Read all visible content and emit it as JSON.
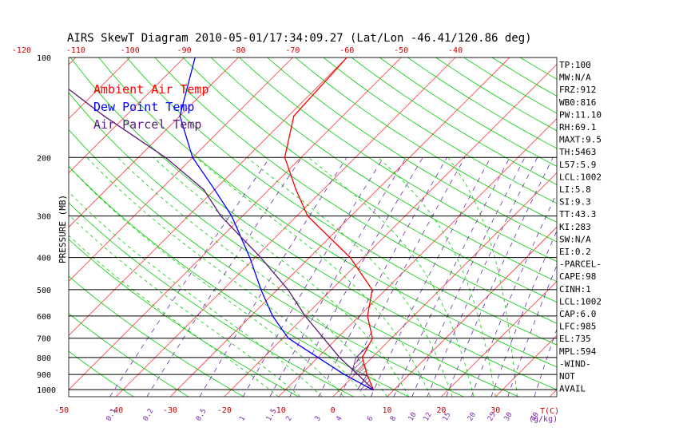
{
  "chart_data": {
    "type": "line",
    "title": "AIRS SkewT Diagram 2010-05-01/17:34:09.27 (Lat/Lon -46.41/120.86 deg)",
    "ylabel": "PRESSURE (MB)",
    "xlabel": "T(C)",
    "mixing_ratio_unit": "(g/kg)",
    "ylim": [
      1050,
      100
    ],
    "xlim": [
      -50,
      40
    ],
    "pressure_ticks": [
      100,
      200,
      300,
      400,
      500,
      600,
      700,
      800,
      900,
      1000
    ],
    "temp_ticks_bottom": [
      -50,
      -40,
      -30,
      -20,
      -10,
      0,
      10,
      20,
      30
    ],
    "temp_ticks_top": [
      -120,
      -110,
      -100,
      -90,
      -80,
      -70,
      -60,
      -50,
      -40
    ],
    "mixing_ratio_labels": [
      "0.1",
      "0.2",
      "0.5",
      "1",
      "1.5",
      "2",
      "3",
      "4",
      "6",
      "8",
      "10",
      "12",
      "15",
      "20",
      "25",
      "30",
      "40"
    ],
    "legend": [
      {
        "name": "Ambient Air Temp",
        "color": "#ff0000"
      },
      {
        "name": "Dew Point Temp",
        "color": "#0000ff"
      },
      {
        "name": "Air Parcel Temp",
        "color": "#5a1a78"
      }
    ],
    "series": [
      {
        "name": "Ambient Air Temp",
        "color": "#ff0000",
        "points": [
          [
            1000,
            6.2
          ],
          [
            900,
            2.2
          ],
          [
            800,
            -1.8
          ],
          [
            700,
            -3.5
          ],
          [
            600,
            -8.5
          ],
          [
            500,
            -12.5
          ],
          [
            400,
            -22.5
          ],
          [
            300,
            -38
          ],
          [
            250,
            -45
          ],
          [
            200,
            -53
          ],
          [
            150,
            -59
          ],
          [
            100,
            -60
          ]
        ]
      },
      {
        "name": "Dew Point Temp",
        "color": "#0000ff",
        "points": [
          [
            1000,
            6
          ],
          [
            900,
            -2
          ],
          [
            800,
            -10
          ],
          [
            700,
            -19
          ],
          [
            600,
            -26
          ],
          [
            500,
            -33
          ],
          [
            400,
            -41
          ],
          [
            300,
            -52
          ],
          [
            250,
            -60
          ],
          [
            200,
            -70
          ],
          [
            150,
            -80
          ],
          [
            100,
            -88
          ]
        ]
      },
      {
        "name": "Air Parcel Temp",
        "color": "#5a1a78",
        "points": [
          [
            1000,
            6.2
          ],
          [
            900,
            0.5
          ],
          [
            800,
            -6
          ],
          [
            700,
            -12.5
          ],
          [
            600,
            -20
          ],
          [
            500,
            -28
          ],
          [
            400,
            -39
          ],
          [
            300,
            -54
          ],
          [
            250,
            -62
          ],
          [
            200,
            -75
          ],
          [
            150,
            -94
          ],
          [
            100,
            -119
          ]
        ]
      }
    ],
    "grid": true
  },
  "indices": [
    "TP:100",
    "MW:N/A",
    "FRZ:912",
    "WB0:816",
    "PW:11.10",
    "RH:69.1",
    "MAXT:9.5",
    "TH:5463",
    "L57:5.9",
    "LCL:1002",
    "LI:5.8",
    "SI:9.3",
    "TT:43.3",
    "KI:283",
    "SW:N/A",
    "EI:0.2",
    "-PARCEL-",
    "CAPE:98",
    "CINH:1",
    "LCL:1002",
    "CAP:6.0",
    "LFC:985",
    "EL:735",
    "MPL:594",
    "-WIND-",
    "NOT",
    "AVAIL"
  ],
  "colors": {
    "isotherm": "#ff3333",
    "dry_adiabat": "#00cc00",
    "moist_adiabat": "#00cc00",
    "mixing_ratio": "#6a2aa8",
    "isobar": "#000000",
    "axis_text": "#cc0000",
    "mixing_text": "#7a2aa8"
  }
}
